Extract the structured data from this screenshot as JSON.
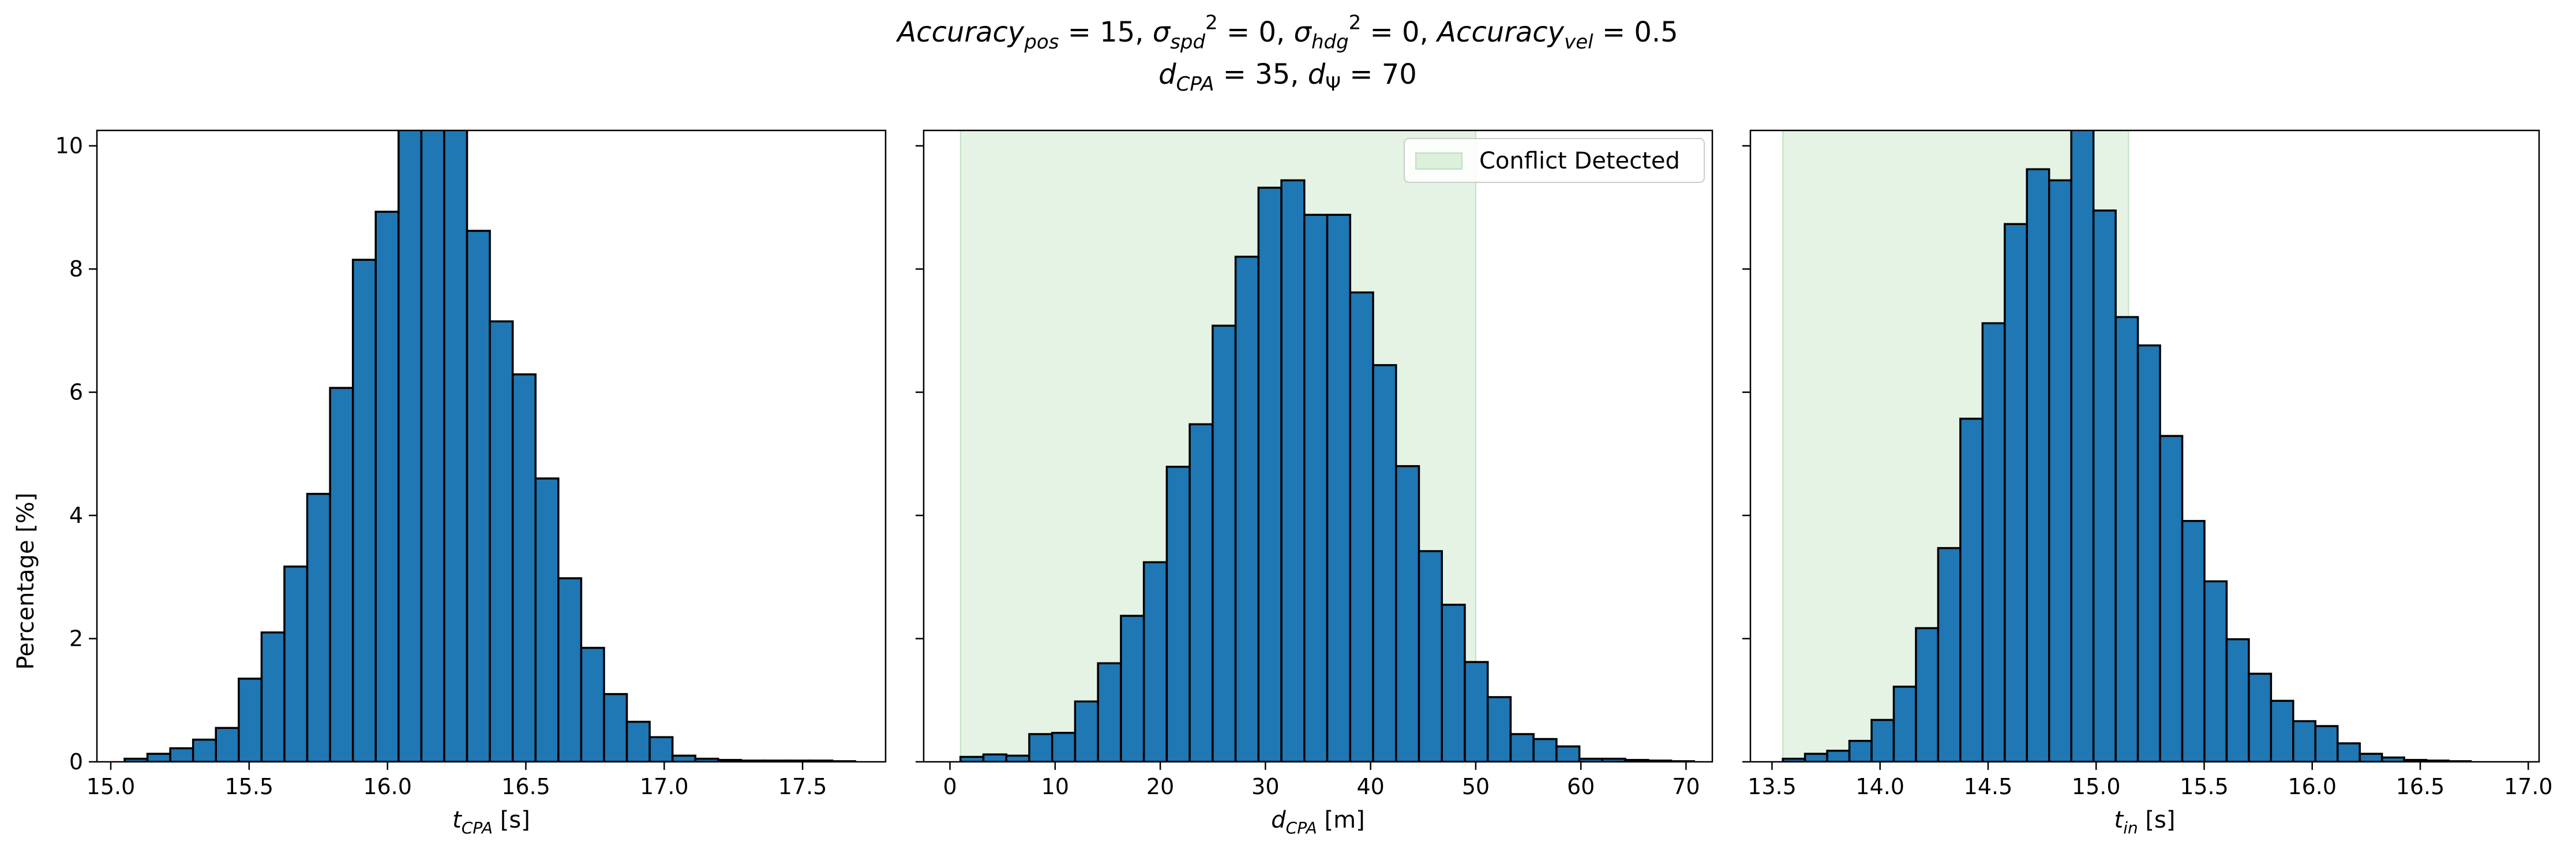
{
  "figure": {
    "title": {
      "line1": [
        {
          "t": "Accuracy",
          "i": true
        },
        {
          "t": "pos",
          "i": true,
          "sub": true
        },
        {
          "t": " = 15, "
        },
        {
          "t": "σ",
          "i": true
        },
        {
          "t": "spd",
          "i": true,
          "sub": true
        },
        {
          "t": "2",
          "sup": true
        },
        {
          "t": " = 0, "
        },
        {
          "t": "σ",
          "i": true
        },
        {
          "t": "hdg",
          "i": true,
          "sub": true
        },
        {
          "t": "2",
          "sup": true
        },
        {
          "t": " = 0, "
        },
        {
          "t": "Accuracy",
          "i": true
        },
        {
          "t": "vel",
          "i": true,
          "sub": true
        },
        {
          "t": " = 0.5"
        }
      ],
      "line2": [
        {
          "t": "d",
          "i": true
        },
        {
          "t": "CPA",
          "i": true,
          "sub": true
        },
        {
          "t": " = 35, "
        },
        {
          "t": "d",
          "i": true
        },
        {
          "t": "Ψ",
          "sub": true
        },
        {
          "t": " = 70"
        }
      ]
    },
    "ylabel": "Percentage [%]",
    "bar_color": "#1f77b4",
    "edge_color": "#000000",
    "shade_color": "#2ca02c",
    "shade_alpha": 0.12
  },
  "chart_data": [
    {
      "type": "bar",
      "xlabel": [
        {
          "t": "t",
          "i": true
        },
        {
          "t": "CPA",
          "i": true,
          "sub": true
        },
        {
          "t": " [s]"
        }
      ],
      "xlim": [
        14.95,
        17.8
      ],
      "ylim": [
        0,
        10.25
      ],
      "xticks": [
        "15.0",
        "15.5",
        "16.0",
        "16.5",
        "17.0",
        "17.5"
      ],
      "yticks": [
        "0",
        "2",
        "4",
        "6",
        "8",
        "10"
      ],
      "bins": {
        "start": 15.05,
        "width": 0.0825
      },
      "values": [
        0.05,
        0.13,
        0.22,
        0.36,
        0.55,
        1.35,
        2.1,
        3.17,
        4.35,
        6.07,
        8.15,
        8.93,
        10.7,
        10.7,
        10.65,
        8.62,
        7.15,
        6.29,
        4.6,
        2.98,
        1.85,
        1.1,
        0.65,
        0.4,
        0.1,
        0.05,
        0.03,
        0.02,
        0.02,
        0.02,
        0.02,
        0.01
      ],
      "shade": null,
      "legend": null
    },
    {
      "type": "bar",
      "xlabel": [
        {
          "t": "d",
          "i": true
        },
        {
          "t": "CPA",
          "i": true,
          "sub": true
        },
        {
          "t": " [m]"
        }
      ],
      "xlim": [
        -2.5,
        72.5
      ],
      "ylim": [
        0,
        10.25
      ],
      "xticks": [
        "0",
        "10",
        "20",
        "30",
        "40",
        "50",
        "60",
        "70"
      ],
      "yticks": [
        "0",
        "2",
        "4",
        "6",
        "8",
        "10"
      ],
      "bins": {
        "start": 1.0,
        "width": 2.18
      },
      "values": [
        0.08,
        0.12,
        0.1,
        0.45,
        0.47,
        0.98,
        1.6,
        2.37,
        3.24,
        4.79,
        5.48,
        7.08,
        8.2,
        9.32,
        9.44,
        8.88,
        8.88,
        7.62,
        6.44,
        4.8,
        3.42,
        2.55,
        1.62,
        1.05,
        0.45,
        0.37,
        0.25,
        0.05,
        0.05,
        0.03,
        0.02,
        0.01
      ],
      "shade": {
        "from": 1.0,
        "to": 50.0
      },
      "legend": {
        "label": "Conflict Detected",
        "position": "upper right"
      }
    },
    {
      "type": "bar",
      "xlabel": [
        {
          "t": "t",
          "i": true
        },
        {
          "t": "in",
          "i": true,
          "sub": true
        },
        {
          "t": " [s]"
        }
      ],
      "xlim": [
        13.4,
        17.05
      ],
      "ylim": [
        0,
        10.25
      ],
      "xticks": [
        "13.5",
        "14.0",
        "14.5",
        "15.0",
        "15.5",
        "16.0",
        "16.5",
        "17.0"
      ],
      "yticks": [
        "0",
        "2",
        "4",
        "6",
        "8",
        "10"
      ],
      "bins": {
        "start": 13.55,
        "width": 0.1027
      },
      "values": [
        0.05,
        0.13,
        0.18,
        0.34,
        0.68,
        1.22,
        2.17,
        3.47,
        5.57,
        7.12,
        8.73,
        9.62,
        9.44,
        10.6,
        8.95,
        7.22,
        6.76,
        5.29,
        3.91,
        2.93,
        1.99,
        1.43,
        0.99,
        0.66,
        0.58,
        0.3,
        0.13,
        0.07,
        0.03,
        0.02,
        0.01
      ],
      "shade": {
        "from": 13.55,
        "to": 15.15
      },
      "legend": null
    }
  ]
}
